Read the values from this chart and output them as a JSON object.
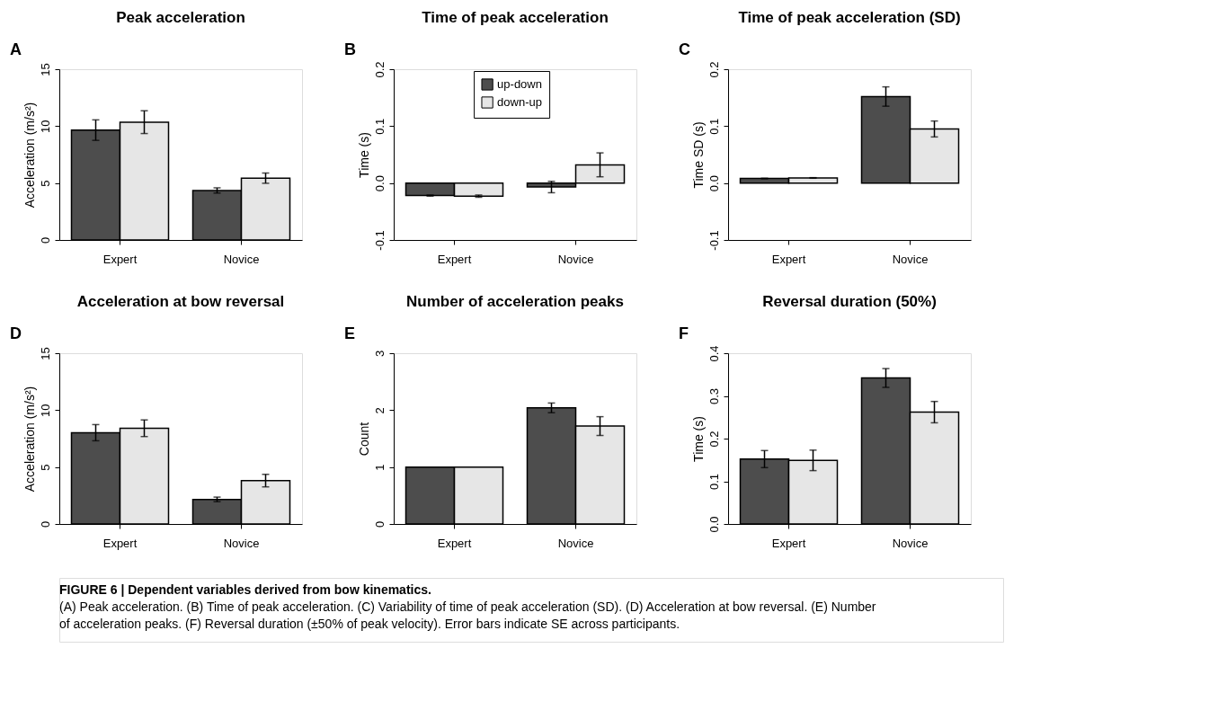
{
  "chart_data": [
    {
      "type": "bar",
      "title": "Peak acceleration",
      "ylabel": "Acceleration  (m/s²)",
      "annotations": [
        "A"
      ],
      "categories": [
        "Expert",
        "Novice"
      ],
      "ylim": [
        0,
        15
      ],
      "yticks": [
        0,
        5,
        10,
        15
      ],
      "legend": false,
      "series": [
        {
          "color": "#4d4d4d",
          "values": [
            9.65,
            4.35
          ],
          "errors": [
            0.9,
            0.23
          ]
        },
        {
          "color": "#e6e6e6",
          "values": [
            10.35,
            5.43
          ],
          "errors": [
            1.0,
            0.45
          ]
        }
      ]
    },
    {
      "type": "bar",
      "title": "Time of peak acceleration",
      "ylabel": "Time (s)",
      "annotations": [
        "B"
      ],
      "categories": [
        "Expert",
        "Novice"
      ],
      "ylim": [
        -0.1,
        0.2
      ],
      "yticks": [
        -0.1,
        {
          "value": 0,
          "label": "0.0"
        },
        0.1,
        0.2
      ],
      "legend": "top",
      "series": [
        {
          "name": "up-down",
          "color": "#4d4d4d",
          "values": [
            -0.022,
            -0.007
          ],
          "errors": [
            0.001,
            0.01
          ]
        },
        {
          "name": "down-up",
          "color": "#e6e6e6",
          "values": [
            -0.023,
            0.032
          ],
          "errors": [
            0.002,
            0.021
          ]
        }
      ]
    },
    {
      "type": "bar",
      "title": "Time of peak acceleration (SD)",
      "ylabel": "Time SD (s)",
      "annotations": [
        "C"
      ],
      "categories": [
        "Expert",
        "Novice"
      ],
      "ylim": [
        -0.1,
        0.2
      ],
      "yticks": [
        -0.1,
        {
          "value": 0,
          "label": "0.0"
        },
        0.1,
        0.2
      ],
      "legend": false,
      "series": [
        {
          "color": "#4d4d4d",
          "values": [
            0.008,
            0.152
          ],
          "errors": [
            0.0005,
            0.017
          ]
        },
        {
          "color": "#e6e6e6",
          "values": [
            0.009,
            0.095
          ],
          "errors": [
            0.0005,
            0.014
          ]
        }
      ]
    },
    {
      "type": "bar",
      "title": "Acceleration at bow reversal",
      "ylabel": "Acceleration  (m/s²)",
      "annotations": [
        "D"
      ],
      "categories": [
        "Expert",
        "Novice"
      ],
      "ylim": [
        0,
        15
      ],
      "yticks": [
        0,
        5,
        10,
        15
      ],
      "legend": false,
      "series": [
        {
          "color": "#4d4d4d",
          "values": [
            8.02,
            2.16
          ],
          "errors": [
            0.71,
            0.2
          ]
        },
        {
          "color": "#e6e6e6",
          "values": [
            8.41,
            3.81
          ],
          "errors": [
            0.73,
            0.55
          ]
        }
      ]
    },
    {
      "type": "bar",
      "title": "Number of acceleration peaks",
      "ylabel": "Count",
      "annotations": [
        "E"
      ],
      "categories": [
        "Expert",
        "Novice"
      ],
      "ylim": [
        0,
        3
      ],
      "yticks": [
        0,
        1,
        2,
        3
      ],
      "legend": false,
      "series": [
        {
          "color": "#4d4d4d",
          "values": [
            1,
            2.04
          ],
          "errors": [
            null,
            0.085
          ]
        },
        {
          "color": "#e6e6e6",
          "values": [
            1,
            1.72
          ],
          "errors": [
            null,
            0.165
          ]
        }
      ]
    },
    {
      "type": "bar",
      "title": "Reversal duration (50%)",
      "ylabel": "Time (s)",
      "annotations": [
        "F"
      ],
      "categories": [
        "Expert",
        "Novice"
      ],
      "ylim": [
        0,
        0.4
      ],
      "yticks": [
        {
          "value": 0,
          "label": "0.0"
        },
        0.1,
        0.2,
        0.3,
        0.4
      ],
      "legend": false,
      "series": [
        {
          "color": "#4d4d4d",
          "values": [
            0.152,
            0.342
          ],
          "errors": [
            0.02,
            0.022
          ]
        },
        {
          "color": "#e6e6e6",
          "values": [
            0.149,
            0.262
          ],
          "errors": [
            0.024,
            0.025
          ]
        }
      ]
    },
    {
      "type": "other",
      "annotations": [
        "FIGURE 6 | Dependent variables derived from bow kinematics.",
        "(A) Peak acceleration. (B) Time of peak acceleration. (C) Variability of time of peak acceleration (SD). (D) Acceleration at bow reversal. (E) Number of acceleration peaks. (F) Reversal duration (±50% of peak velocity). Error bars indicate SE across participants."
      ]
    }
  ]
}
